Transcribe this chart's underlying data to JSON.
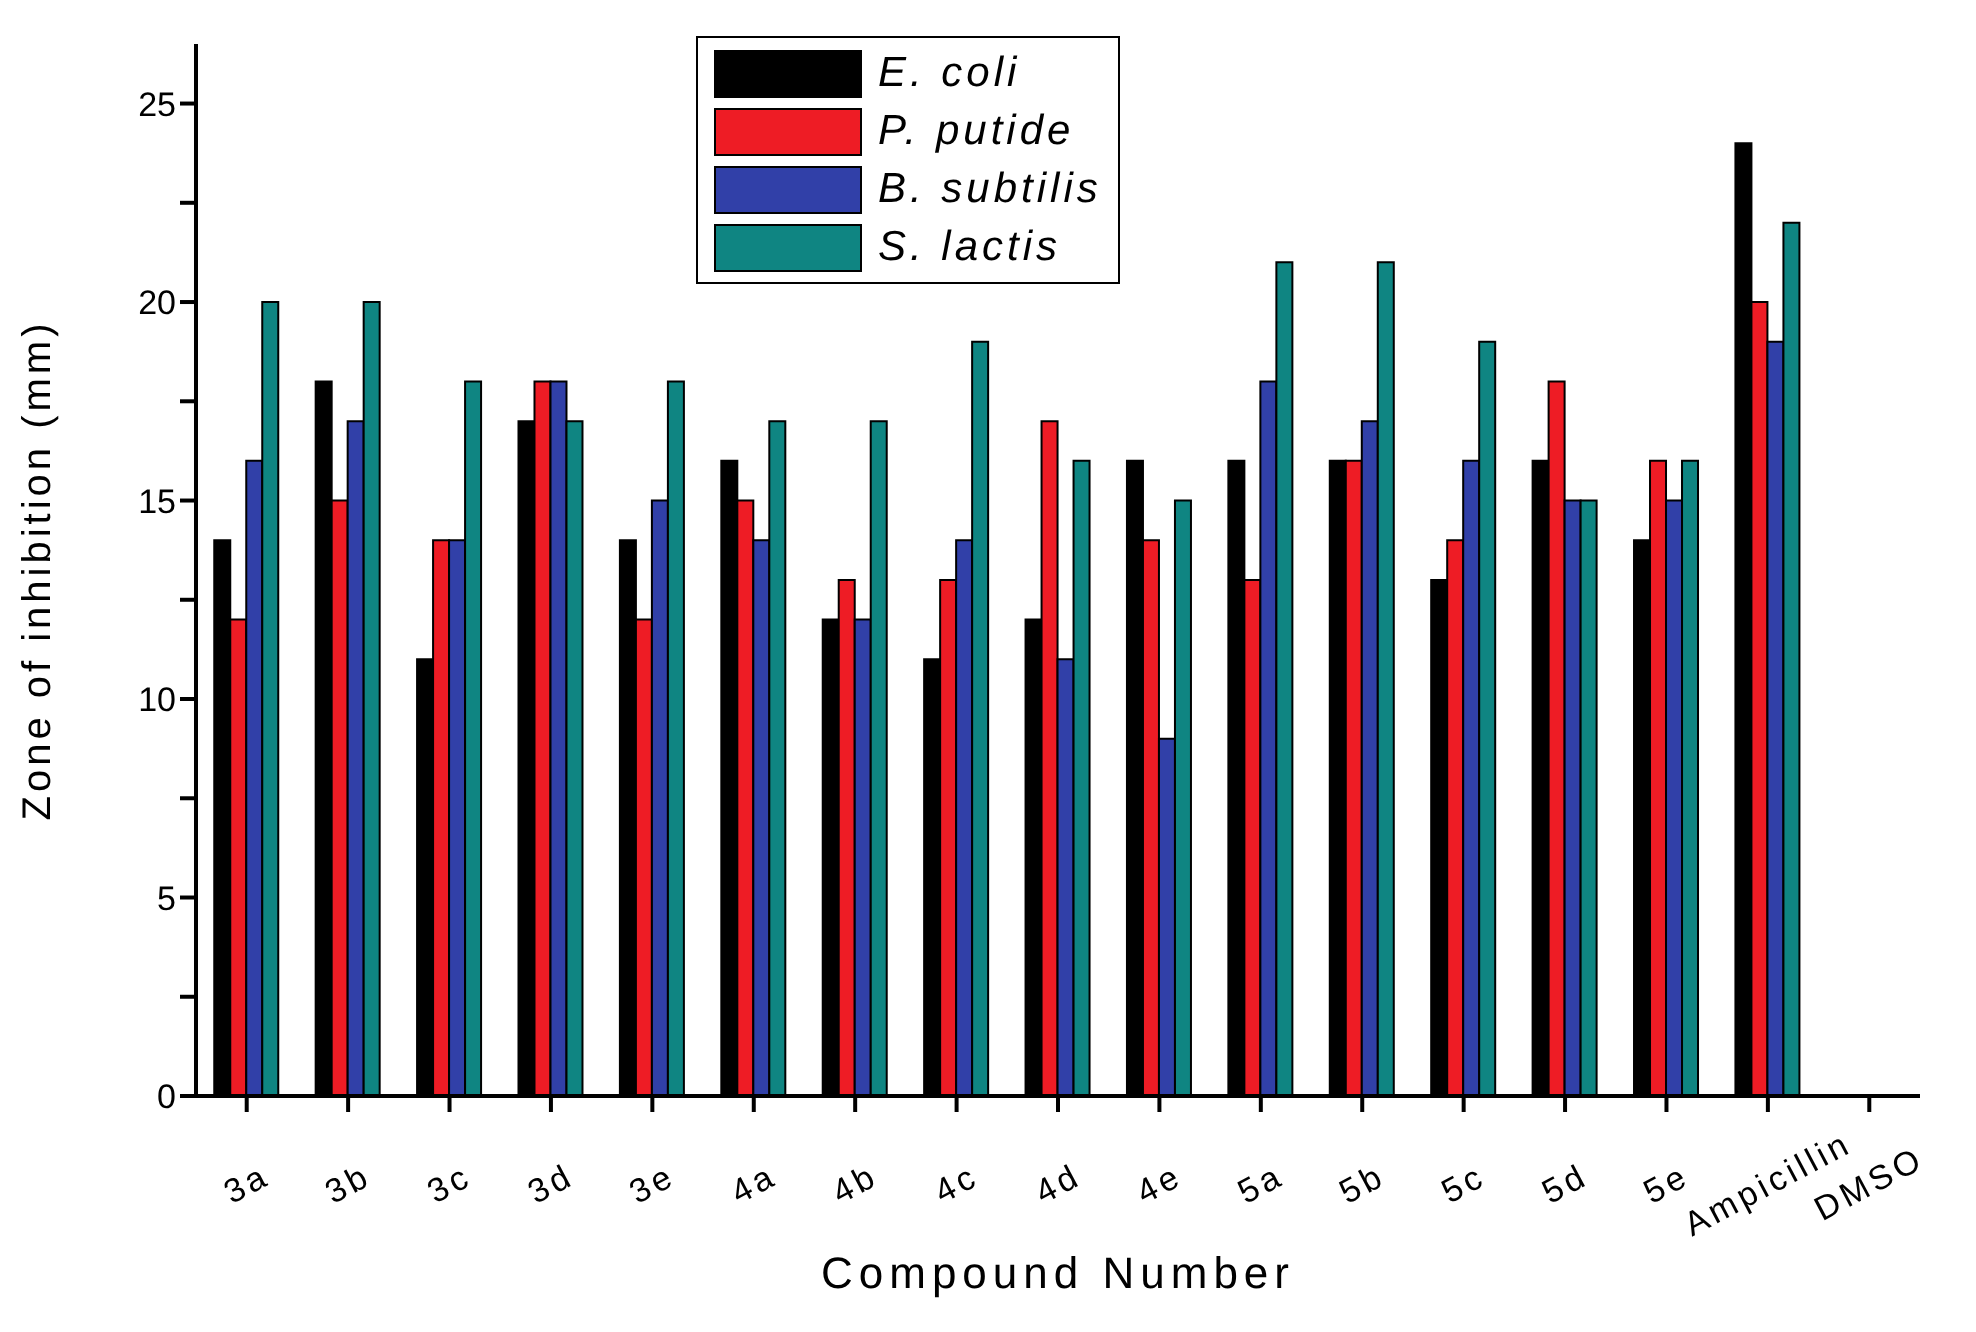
{
  "chart_data": {
    "type": "bar",
    "xlabel": "Compound Number",
    "ylabel": "Zone of inhibition (mm)",
    "categories": [
      "3a",
      "3b",
      "3c",
      "3d",
      "3e",
      "4a",
      "4b",
      "4c",
      "4d",
      "4e",
      "5a",
      "5b",
      "5c",
      "5d",
      "5e",
      "Ampicillin",
      "DMSO"
    ],
    "series": [
      {
        "name": "E. coli",
        "color": "#000000",
        "values": [
          14,
          18,
          11,
          17,
          14,
          16,
          12,
          11,
          12,
          16,
          16,
          16,
          13,
          16,
          14,
          24,
          0
        ]
      },
      {
        "name": "P. putide",
        "color": "#ee1c25",
        "values": [
          12,
          15,
          14,
          18,
          12,
          15,
          13,
          13,
          17,
          14,
          13,
          16,
          14,
          18,
          16,
          20,
          0
        ]
      },
      {
        "name": "B. subtilis",
        "color": "#3140a8",
        "values": [
          16,
          17,
          14,
          18,
          15,
          14,
          12,
          14,
          11,
          9,
          18,
          17,
          16,
          15,
          15,
          19,
          0
        ]
      },
      {
        "name": "S. lactis",
        "color": "#0f8582",
        "values": [
          20,
          20,
          18,
          17,
          18,
          17,
          17,
          19,
          16,
          15,
          21,
          21,
          19,
          15,
          16,
          22,
          0
        ]
      }
    ],
    "ylim": [
      0,
      26.5
    ],
    "yticks": [
      0,
      {
        "value": 2.5,
        "label": null
      },
      5,
      {
        "value": 7.5,
        "label": null
      },
      10,
      {
        "value": 12.5,
        "label": null
      },
      15,
      {
        "value": 17.5,
        "label": null
      },
      20,
      {
        "value": 22.5,
        "label": null
      },
      25
    ],
    "legend": "top",
    "grid": false
  }
}
